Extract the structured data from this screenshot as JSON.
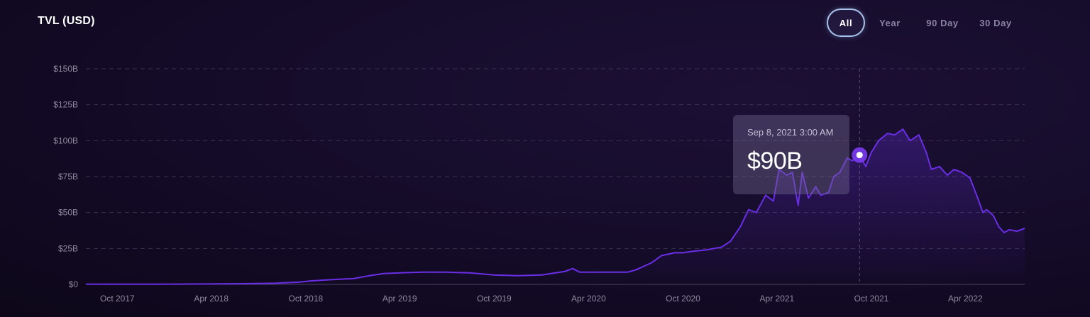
{
  "header": {
    "title": "TVL (USD)"
  },
  "range_tabs": [
    {
      "label": "All",
      "active": true
    },
    {
      "label": "Year",
      "active": false
    },
    {
      "label": "90 Day",
      "active": false
    },
    {
      "label": "30 Day",
      "active": false
    }
  ],
  "tooltip": {
    "date": "Sep 8, 2021 3:00 AM",
    "value": "$90B"
  },
  "colors": {
    "line": "#6a2ee6",
    "marker": "#7b3cf2",
    "grid": "#3a3150",
    "axis_text": "#8e889f"
  },
  "chart_data": {
    "type": "area",
    "title": "TVL (USD)",
    "xlabel": "",
    "ylabel": "",
    "ylim": [
      0,
      150
    ],
    "y_ticks": [
      "$0",
      "$25B",
      "$50B",
      "$75B",
      "$100B",
      "$125B",
      "$150B"
    ],
    "x_ticks": [
      "Oct 2017",
      "Apr 2018",
      "Oct 2018",
      "Apr 2019",
      "Oct 2019",
      "Apr 2020",
      "Oct 2020",
      "Apr 2021",
      "Oct 2021",
      "Apr 2022"
    ],
    "grid": true,
    "series": [
      {
        "x": [
          "2017-08-01",
          "2017-10-01",
          "2017-12-01",
          "2018-02-01",
          "2018-04-01",
          "2018-06-01",
          "2018-08-01",
          "2018-09-15",
          "2018-10-15",
          "2018-12-01",
          "2019-01-01",
          "2019-02-01",
          "2019-03-01",
          "2019-04-01",
          "2019-05-15",
          "2019-07-01",
          "2019-08-15",
          "2019-10-01",
          "2019-11-15",
          "2020-01-01",
          "2020-02-15",
          "2020-03-01",
          "2020-03-15",
          "2020-05-01",
          "2020-06-15",
          "2020-07-01",
          "2020-08-01",
          "2020-08-20",
          "2020-09-15",
          "2020-10-01",
          "2020-10-20",
          "2020-11-15",
          "2020-12-15",
          "2021-01-01",
          "2021-01-20",
          "2021-02-05",
          "2021-02-20",
          "2021-03-10",
          "2021-03-25",
          "2021-04-05",
          "2021-04-20",
          "2021-05-01",
          "2021-05-12",
          "2021-05-20",
          "2021-06-01",
          "2021-06-15",
          "2021-06-25",
          "2021-07-10",
          "2021-07-20",
          "2021-08-01",
          "2021-08-15",
          "2021-08-25",
          "2021-09-08",
          "2021-09-20",
          "2021-10-01",
          "2021-10-15",
          "2021-11-01",
          "2021-11-15",
          "2021-12-01",
          "2021-12-15",
          "2022-01-01",
          "2022-01-15",
          "2022-01-25",
          "2022-02-10",
          "2022-02-25",
          "2022-03-10",
          "2022-03-25",
          "2022-04-10",
          "2022-04-25",
          "2022-05-05",
          "2022-05-12",
          "2022-05-25",
          "2022-06-05",
          "2022-06-15",
          "2022-06-25",
          "2022-07-10",
          "2022-07-25"
        ],
        "values": [
          0.1,
          0.1,
          0.1,
          0.2,
          0.3,
          0.5,
          0.8,
          1.5,
          2.5,
          3.5,
          4,
          6,
          7.5,
          8,
          8.5,
          8.5,
          8,
          6.5,
          6,
          6.5,
          9,
          11,
          8.5,
          8.5,
          8.5,
          10,
          15,
          20,
          22,
          22,
          23,
          24,
          26,
          30,
          40,
          52,
          50,
          62,
          58,
          80,
          76,
          78,
          55,
          78,
          60,
          68,
          62,
          64,
          75,
          78,
          88,
          86,
          90,
          82,
          92,
          100,
          105,
          104,
          108,
          100,
          104,
          92,
          80,
          82,
          76,
          80,
          78,
          74,
          60,
          50,
          52,
          48,
          40,
          36,
          38,
          37,
          39
        ]
      }
    ]
  }
}
